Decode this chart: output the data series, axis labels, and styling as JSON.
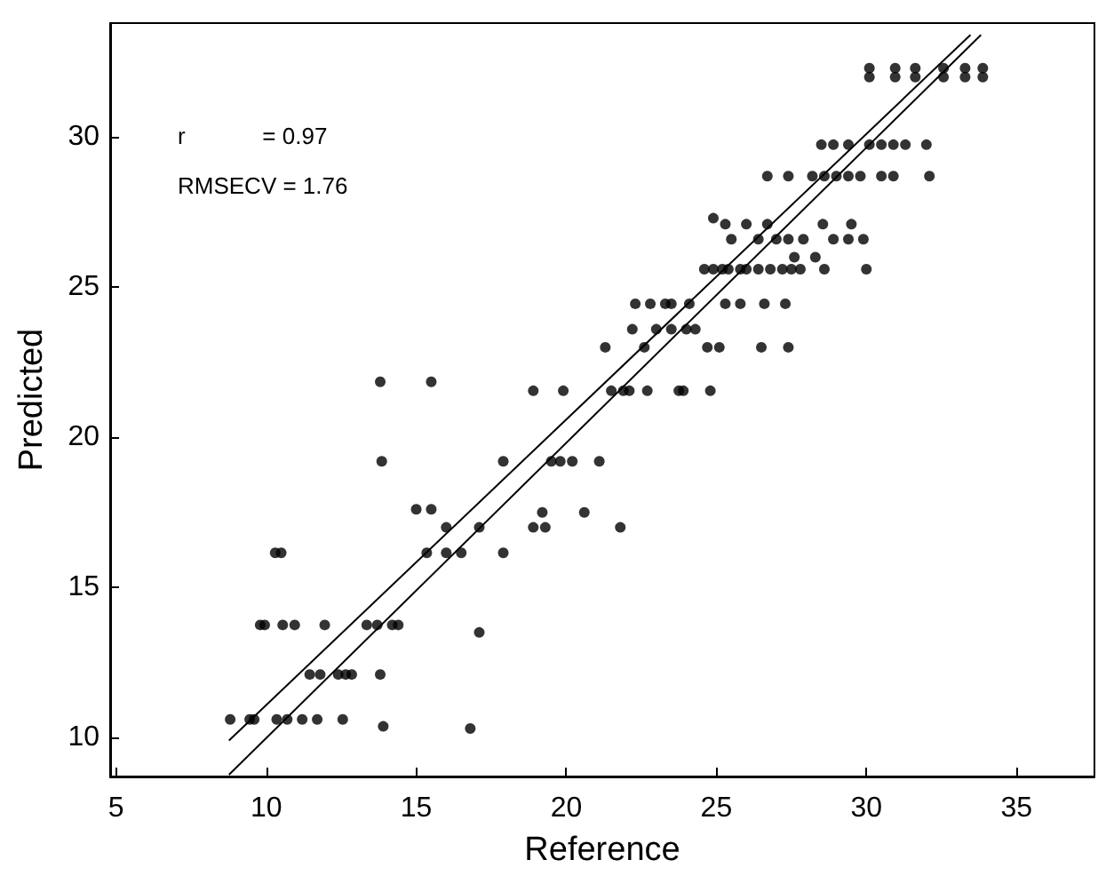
{
  "chart_data": {
    "type": "scatter",
    "xlabel": "Reference",
    "ylabel": "Predicted",
    "annotations": [
      "r            = 0.97",
      "RMSECV = 1.76"
    ],
    "xlim": [
      4.8,
      37.6
    ],
    "ylim": [
      8.7,
      33.8
    ],
    "xticks": [
      5,
      10,
      15,
      20,
      25,
      30,
      35
    ],
    "yticks": [
      10,
      15,
      20,
      25,
      30
    ],
    "grid": false,
    "marker": "circle",
    "series": [
      {
        "type": "scatter",
        "color": "#000000",
        "x": [
          30.1,
          30.1,
          30.96,
          30.96,
          31.63,
          31.63,
          32.57,
          32.57,
          33.29,
          33.29,
          33.88,
          33.88,
          28.5,
          28.9,
          29.4,
          30.1,
          30.5,
          30.9,
          31.3,
          32.0,
          26.7,
          27.4,
          28.2,
          28.6,
          29.0,
          29.4,
          29.8,
          30.5,
          30.9,
          32.1,
          24.9,
          25.3,
          26.0,
          26.7,
          28.55,
          29.5,
          25.5,
          26.4,
          27.0,
          27.4,
          27.9,
          28.9,
          29.4,
          29.9,
          27.6,
          28.3,
          24.6,
          24.9,
          25.2,
          25.4,
          25.8,
          26.0,
          26.4,
          26.8,
          27.2,
          27.5,
          27.8,
          28.6,
          30.0,
          22.3,
          22.8,
          23.3,
          23.5,
          24.1,
          25.3,
          25.8,
          26.6,
          27.3,
          22.2,
          23.0,
          23.5,
          24.0,
          24.3,
          21.3,
          22.6,
          24.7,
          25.1,
          26.5,
          27.4,
          18.9,
          19.9,
          21.5,
          21.9,
          22.1,
          22.7,
          23.75,
          23.9,
          24.8,
          13.8,
          15.5,
          13.85,
          17.9,
          19.5,
          19.8,
          20.2,
          21.1,
          15.0,
          15.5,
          19.2,
          20.6,
          16.0,
          17.1,
          18.9,
          19.3,
          21.8,
          10.3,
          10.5,
          15.35,
          16.0,
          16.5,
          17.9,
          9.8,
          9.95,
          10.55,
          10.95,
          11.95,
          13.35,
          13.7,
          14.2,
          14.4,
          17.1,
          11.45,
          11.8,
          12.4,
          12.65,
          12.85,
          13.8,
          8.8,
          9.45,
          9.6,
          10.35,
          10.7,
          11.2,
          11.7,
          12.55,
          13.9,
          16.8
        ],
        "values": [
          32.0,
          32.3,
          32.0,
          32.3,
          32.0,
          32.3,
          32.0,
          32.3,
          32.0,
          32.3,
          32.0,
          32.3,
          29.75,
          29.75,
          29.75,
          29.75,
          29.75,
          29.75,
          29.75,
          29.75,
          28.7,
          28.7,
          28.7,
          28.7,
          28.7,
          28.7,
          28.7,
          28.7,
          28.7,
          28.7,
          27.3,
          27.1,
          27.1,
          27.1,
          27.1,
          27.1,
          26.6,
          26.6,
          26.6,
          26.6,
          26.6,
          26.6,
          26.6,
          26.6,
          26.0,
          26.0,
          25.6,
          25.6,
          25.6,
          25.6,
          25.6,
          25.6,
          25.6,
          25.6,
          25.6,
          25.6,
          25.6,
          25.6,
          25.6,
          24.45,
          24.45,
          24.45,
          24.45,
          24.45,
          24.45,
          24.45,
          24.45,
          24.45,
          23.6,
          23.6,
          23.6,
          23.6,
          23.6,
          23.0,
          23.0,
          23.0,
          23.0,
          23.0,
          23.0,
          21.55,
          21.55,
          21.55,
          21.55,
          21.55,
          21.55,
          21.55,
          21.55,
          21.55,
          21.85,
          21.85,
          19.2,
          19.2,
          19.2,
          19.2,
          19.2,
          19.2,
          17.6,
          17.6,
          17.5,
          17.5,
          17.0,
          17.0,
          17.0,
          17.0,
          17.0,
          16.15,
          16.15,
          16.15,
          16.15,
          16.15,
          16.15,
          13.75,
          13.75,
          13.75,
          13.75,
          13.75,
          13.75,
          13.75,
          13.75,
          13.75,
          13.5,
          12.1,
          12.1,
          12.1,
          12.1,
          12.1,
          12.1,
          10.6,
          10.6,
          10.6,
          10.6,
          10.6,
          10.6,
          10.6,
          10.6,
          10.37,
          10.3
        ]
      },
      {
        "type": "line",
        "color": "#000000",
        "marker": "none",
        "x": [
          8.76,
          33.47
        ],
        "values": [
          9.9,
          33.41
        ]
      },
      {
        "type": "line",
        "color": "#000000",
        "marker": "none",
        "x": [
          8.76,
          33.82
        ],
        "values": [
          8.76,
          33.41
        ]
      }
    ]
  }
}
